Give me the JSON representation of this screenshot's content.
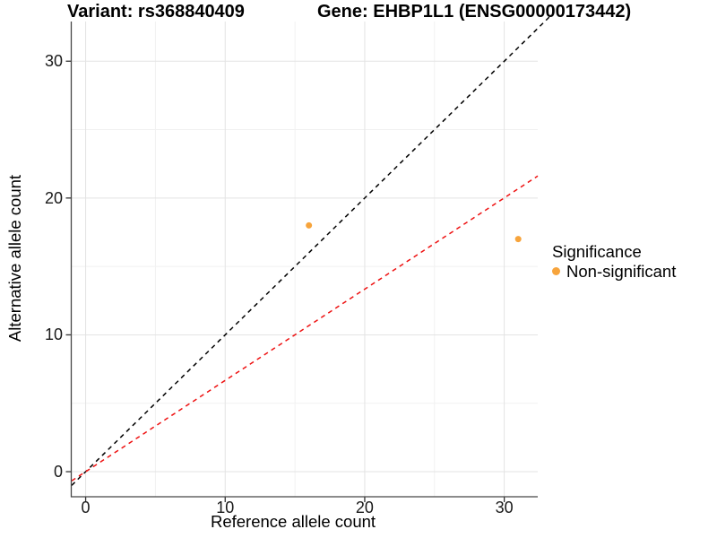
{
  "figure": {
    "title_left": "Variant: rs368840409",
    "title_right": "Gene: EHBP1L1 (ENSG00000173442)"
  },
  "chart_data": {
    "type": "scatter",
    "title": "Variant: rs368840409  |  Gene: EHBP1L1 (ENSG00000173442)",
    "xlabel": "Reference allele count",
    "ylabel": "Alternative allele count",
    "xlim": [
      -1.0,
      32.4
    ],
    "ylim": [
      -1.8,
      32.9
    ],
    "x_ticks": [
      0,
      10,
      20,
      30
    ],
    "y_ticks": [
      0,
      10,
      20,
      30
    ],
    "minor_ticks_x": [
      5,
      15,
      25
    ],
    "minor_ticks_y": [
      5,
      15,
      25
    ],
    "grid": true,
    "legend_position": "right",
    "points": [
      {
        "x": 16,
        "y": 18,
        "significance": "Non-significant"
      },
      {
        "x": 31,
        "y": 17,
        "significance": "Non-significant"
      }
    ],
    "lines": [
      {
        "name": "identity-line",
        "slope": 1,
        "intercept": 0,
        "color": "#000000",
        "style": "dashed",
        "x_range": [
          -1.0,
          33.3
        ]
      },
      {
        "name": "ratio-line",
        "slope": 0.667,
        "intercept": 0,
        "color": "#ee1111",
        "style": "dashed",
        "x_range": [
          -1.0,
          32.4
        ]
      }
    ],
    "legend": {
      "title": "Significance",
      "items": [
        {
          "label": "Non-significant",
          "color": "#f7a43c"
        }
      ]
    },
    "colors": {
      "point": "#f7a43c",
      "grid_major": "#e3e3e3",
      "grid_minor": "#f1f1f1",
      "axis_line": "#464646",
      "tick": "#333333",
      "tick_label": "#1a1a1a"
    }
  }
}
